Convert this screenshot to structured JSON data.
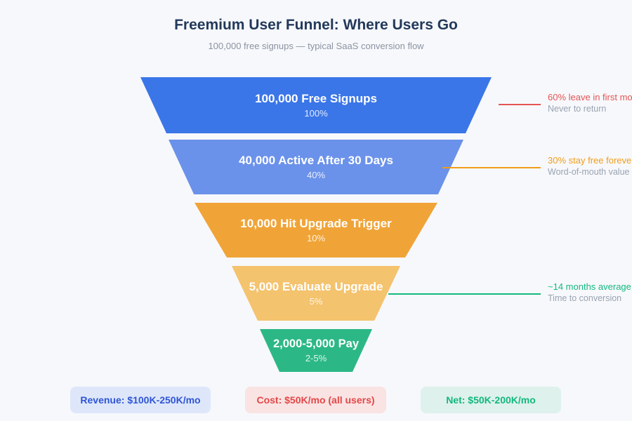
{
  "page": {
    "background_color": "#f7f8fb"
  },
  "header": {
    "title": "Freemium User Funnel: Where Users Go",
    "subtitle": "100,000 free signups — typical SaaS conversion flow"
  },
  "chart_data": {
    "type": "funnel",
    "title": "Freemium User Funnel: Where Users Go",
    "subtitle": "100,000 free signups — typical SaaS conversion flow",
    "stages": [
      {
        "label": "100,000 Free Signups",
        "percent_label": "100%",
        "value": 100000,
        "percent": 100,
        "color": "#3b76e8"
      },
      {
        "label": "40,000 Active After 30 Days",
        "percent_label": "40%",
        "value": 40000,
        "percent": 40,
        "color": "#6b92ea"
      },
      {
        "label": "10,000 Hit Upgrade Trigger",
        "percent_label": "10%",
        "value": 10000,
        "percent": 10,
        "color": "#f0a437"
      },
      {
        "label": "5,000 Evaluate Upgrade",
        "percent_label": "5%",
        "value": 5000,
        "percent": 5,
        "color": "#f4c36e"
      },
      {
        "label": "2,000-5,000 Pay",
        "percent_label": "2-5%",
        "value_min": 2000,
        "value_max": 5000,
        "percent_min": 2,
        "percent_max": 5,
        "color": "#2cb886"
      }
    ],
    "annotations": [
      {
        "text": "60% leave in first mo",
        "subtext": "Never to return",
        "color": "#e45454",
        "attached_stage_index": 0
      },
      {
        "text": "30% stay free foreve",
        "subtext": "Word-of-mouth value",
        "color": "#ef9d1b",
        "attached_stage_index": 1
      },
      {
        "text": "~14 months average",
        "subtext": "Time to conversion",
        "color": "#13b97e",
        "attached_stage_index": 3
      }
    ],
    "badges": [
      {
        "label": "Revenue: $100K-250K/mo",
        "text_color": "#2f55d4",
        "bg_color": "#dee7fa"
      },
      {
        "label": "Cost: $50K/mo (all users)",
        "text_color": "#e44747",
        "bg_color": "#f9e3e3"
      },
      {
        "label": "Net: $50K-200K/mo",
        "text_color": "#12b87c",
        "bg_color": "#def1ec"
      }
    ]
  }
}
